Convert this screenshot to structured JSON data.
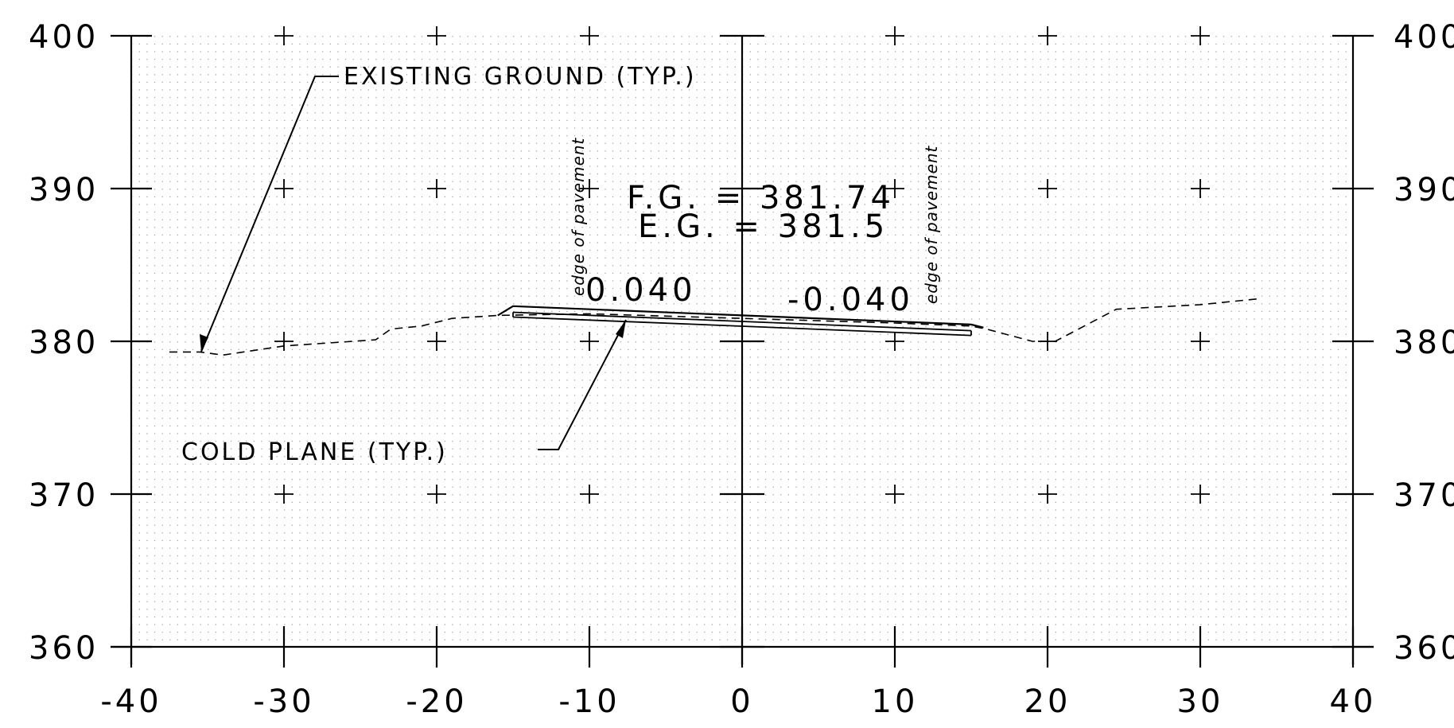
{
  "x_axis": {
    "min": -40,
    "max": 40,
    "step": 10,
    "tick_labels": [
      "-40",
      "-30",
      "-20",
      "-10",
      "0",
      "10",
      "20",
      "30",
      "40"
    ]
  },
  "y_axis": {
    "min": 360,
    "max": 400,
    "step": 10,
    "tick_labels": [
      "360",
      "370",
      "380",
      "390",
      "400"
    ]
  },
  "labels": {
    "existing_ground": "EXISTING GROUND (TYP.)",
    "cold_plane": "COLD PLANE (TYP.)",
    "fg": "F.G. = 381.74",
    "eg": "E.G. = 381.5",
    "slope_left": "0.040",
    "slope_right": "-0.040",
    "edge_left": "edge of pavement",
    "edge_right": "edge of pavement"
  },
  "existing_ground_profile": [
    [
      -37.5,
      379.3
    ],
    [
      -35.5,
      379.3
    ],
    [
      -34,
      379.1
    ],
    [
      -30,
      379.7
    ],
    [
      -24,
      380.1
    ],
    [
      -23,
      380.8
    ],
    [
      -21,
      381.0
    ],
    [
      -19,
      381.5
    ],
    [
      -17.5,
      381.6
    ],
    [
      -16,
      381.7
    ],
    [
      -10,
      381.8
    ],
    [
      0,
      381.5
    ],
    [
      10,
      381.2
    ],
    [
      15,
      381.0
    ],
    [
      16,
      380.8
    ],
    [
      19,
      380.0
    ],
    [
      20.5,
      380.0
    ],
    [
      24.5,
      382.1
    ],
    [
      30,
      382.4
    ],
    [
      34,
      382.8
    ]
  ],
  "pavement_top": [
    [
      -16,
      381.7
    ],
    [
      -15,
      382.3
    ],
    [
      0,
      381.7
    ],
    [
      15,
      381.1
    ],
    [
      15.8,
      380.9
    ]
  ],
  "cold_plane_layer": [
    [
      -15,
      381.9
    ],
    [
      0,
      381.3
    ],
    [
      15,
      380.7
    ]
  ]
}
